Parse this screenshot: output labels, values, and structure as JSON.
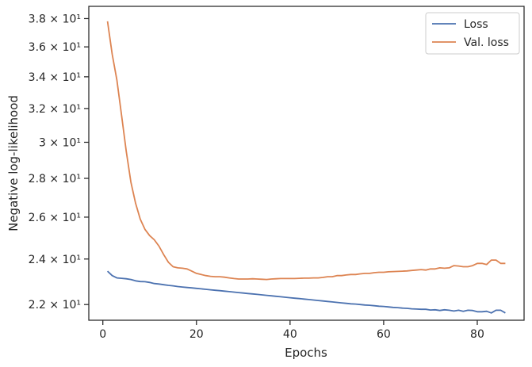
{
  "chart_data": {
    "type": "line",
    "title": "",
    "xlabel": "Epochs",
    "ylabel": "Negative log-likelihood",
    "xlim": [
      -3,
      90
    ],
    "ylim": [
      21.35,
      38.9
    ],
    "yscale": "log",
    "grid": false,
    "legend_position": "top-right",
    "x_ticks": [
      0,
      20,
      40,
      60,
      80
    ],
    "x_tick_labels": [
      "0",
      "20",
      "40",
      "60",
      "80"
    ],
    "y_ticks": [
      22,
      24,
      26,
      28,
      30,
      32,
      34,
      36,
      38
    ],
    "y_tick_labels": [
      "2.2 × 10¹",
      "2.4 × 10¹",
      "2.6 × 10¹",
      "2.8 × 10¹",
      "3 × 10¹",
      "3.2 × 10¹",
      "3.4 × 10¹",
      "3.6 × 10¹",
      "3.8 × 10¹"
    ],
    "series": [
      {
        "name": "Loss",
        "color": "#4c72b0",
        "x": [
          1,
          2,
          3,
          4,
          5,
          6,
          7,
          8,
          9,
          10,
          11,
          12,
          13,
          14,
          15,
          16,
          17,
          18,
          19,
          20,
          21,
          22,
          23,
          24,
          25,
          26,
          27,
          28,
          29,
          30,
          31,
          32,
          33,
          34,
          35,
          36,
          37,
          38,
          39,
          40,
          41,
          42,
          43,
          44,
          45,
          46,
          47,
          48,
          49,
          50,
          51,
          52,
          53,
          54,
          55,
          56,
          57,
          58,
          59,
          60,
          61,
          62,
          63,
          64,
          65,
          66,
          67,
          68,
          69,
          70,
          71,
          72,
          73,
          74,
          75,
          76,
          77,
          78,
          79,
          80,
          81,
          82,
          83,
          84,
          85,
          86
        ],
        "y": [
          23.45,
          23.25,
          23.15,
          23.13,
          23.11,
          23.08,
          23.02,
          22.99,
          22.98,
          22.95,
          22.9,
          22.88,
          22.85,
          22.82,
          22.8,
          22.77,
          22.75,
          22.73,
          22.71,
          22.69,
          22.67,
          22.65,
          22.63,
          22.61,
          22.59,
          22.57,
          22.55,
          22.53,
          22.51,
          22.49,
          22.47,
          22.45,
          22.43,
          22.41,
          22.39,
          22.37,
          22.35,
          22.33,
          22.31,
          22.29,
          22.27,
          22.25,
          22.23,
          22.21,
          22.19,
          22.17,
          22.15,
          22.13,
          22.11,
          22.09,
          22.07,
          22.05,
          22.03,
          22.02,
          22.0,
          21.98,
          21.97,
          21.95,
          21.93,
          21.92,
          21.9,
          21.88,
          21.87,
          21.85,
          21.84,
          21.82,
          21.81,
          21.8,
          21.8,
          21.77,
          21.78,
          21.75,
          21.78,
          21.76,
          21.73,
          21.76,
          21.72,
          21.76,
          21.75,
          21.7,
          21.7,
          21.72,
          21.65,
          21.76,
          21.76,
          21.65
        ]
      },
      {
        "name": "Val. loss",
        "color": "#dd8452",
        "x": [
          1,
          2,
          3,
          4,
          5,
          6,
          7,
          8,
          9,
          10,
          11,
          12,
          13,
          14,
          15,
          16,
          17,
          18,
          19,
          20,
          21,
          22,
          23,
          24,
          25,
          26,
          27,
          28,
          29,
          30,
          31,
          32,
          33,
          34,
          35,
          36,
          37,
          38,
          39,
          40,
          41,
          42,
          43,
          44,
          45,
          46,
          47,
          48,
          49,
          50,
          51,
          52,
          53,
          54,
          55,
          56,
          57,
          58,
          59,
          60,
          61,
          62,
          63,
          64,
          65,
          66,
          67,
          68,
          69,
          70,
          71,
          72,
          73,
          74,
          75,
          76,
          77,
          78,
          79,
          80,
          81,
          82,
          83,
          84,
          85,
          86
        ],
        "y": [
          37.8,
          35.5,
          33.8,
          31.6,
          29.5,
          27.8,
          26.7,
          25.9,
          25.4,
          25.1,
          24.9,
          24.6,
          24.2,
          23.85,
          23.65,
          23.6,
          23.58,
          23.55,
          23.45,
          23.35,
          23.3,
          23.25,
          23.22,
          23.2,
          23.2,
          23.18,
          23.15,
          23.12,
          23.1,
          23.1,
          23.1,
          23.11,
          23.1,
          23.09,
          23.08,
          23.1,
          23.11,
          23.12,
          23.12,
          23.12,
          23.12,
          23.13,
          23.14,
          23.14,
          23.15,
          23.15,
          23.17,
          23.2,
          23.2,
          23.25,
          23.25,
          23.28,
          23.3,
          23.3,
          23.33,
          23.35,
          23.35,
          23.38,
          23.4,
          23.4,
          23.42,
          23.43,
          23.44,
          23.45,
          23.46,
          23.48,
          23.5,
          23.52,
          23.5,
          23.55,
          23.55,
          23.6,
          23.58,
          23.6,
          23.7,
          23.68,
          23.65,
          23.65,
          23.7,
          23.8,
          23.8,
          23.75,
          23.95,
          23.95,
          23.8,
          23.8
        ]
      }
    ]
  }
}
